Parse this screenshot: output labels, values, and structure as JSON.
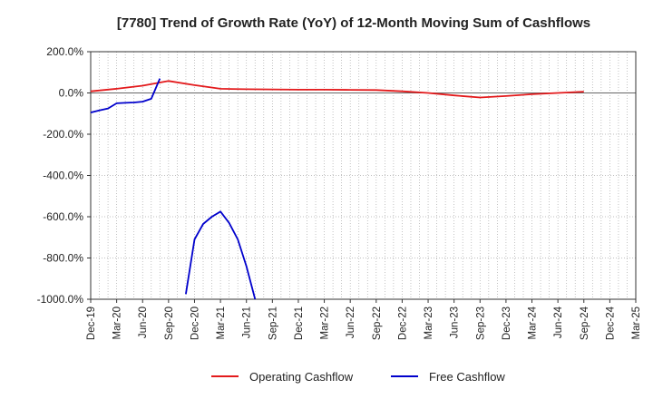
{
  "chart_data": {
    "type": "line",
    "title": "[7780]  Trend of Growth Rate (YoY) of 12-Month Moving Sum of Cashflows",
    "xlabel": "",
    "ylabel": "",
    "ylim": [
      -1000,
      200
    ],
    "y_ticks": [
      "200.0%",
      "0.0%",
      "-200.0%",
      "-400.0%",
      "-600.0%",
      "-800.0%",
      "-1000.0%"
    ],
    "y_tick_values": [
      200,
      0,
      -200,
      -400,
      -600,
      -800,
      -1000
    ],
    "x_ticks": [
      "Dec-19",
      "Mar-20",
      "Jun-20",
      "Sep-20",
      "Dec-20",
      "Mar-21",
      "Jun-21",
      "Sep-21",
      "Dec-21",
      "Mar-22",
      "Jun-22",
      "Sep-22",
      "Dec-22",
      "Mar-23",
      "Jun-23",
      "Sep-23",
      "Dec-23",
      "Mar-24",
      "Jun-24",
      "Sep-24",
      "Dec-24",
      "Mar-25"
    ],
    "x_range": [
      "2019-12",
      "2025-03"
    ],
    "grid": true,
    "legend_position": "bottom",
    "series": [
      {
        "name": "Operating Cashflow",
        "color": "#e31a1c",
        "points": [
          [
            "2019-12",
            8
          ],
          [
            "2020-03",
            20
          ],
          [
            "2020-06",
            35
          ],
          [
            "2020-09",
            58
          ],
          [
            "2020-12",
            38
          ],
          [
            "2021-03",
            20
          ],
          [
            "2021-06",
            18
          ],
          [
            "2021-09",
            17
          ],
          [
            "2021-12",
            16
          ],
          [
            "2022-03",
            16
          ],
          [
            "2022-06",
            15
          ],
          [
            "2022-09",
            14
          ],
          [
            "2022-12",
            8
          ],
          [
            "2023-03",
            0
          ],
          [
            "2023-06",
            -12
          ],
          [
            "2023-09",
            -22
          ],
          [
            "2023-12",
            -15
          ],
          [
            "2024-03",
            -6
          ],
          [
            "2024-06",
            0
          ],
          [
            "2024-09",
            6
          ]
        ]
      },
      {
        "name": "Free Cashflow",
        "color": "#0000cc",
        "points": [
          [
            "2019-12",
            -95
          ],
          [
            "2020-01",
            -85
          ],
          [
            "2020-02",
            -75
          ],
          [
            "2020-03",
            -50
          ],
          [
            "2020-04",
            -48
          ],
          [
            "2020-05",
            -46
          ],
          [
            "2020-06",
            -42
          ],
          [
            "2020-07",
            -28
          ],
          [
            "2020-08",
            70
          ],
          [
            "2020-11",
            -975
          ],
          [
            "2020-12",
            -710
          ],
          [
            "2021-01",
            -635
          ],
          [
            "2021-02",
            -600
          ],
          [
            "2021-03",
            -575
          ],
          [
            "2021-04",
            -630
          ],
          [
            "2021-05",
            -710
          ],
          [
            "2021-06",
            -840
          ],
          [
            "2021-07",
            -1000
          ]
        ],
        "breaks_after": [
          "2020-08"
        ]
      }
    ]
  }
}
